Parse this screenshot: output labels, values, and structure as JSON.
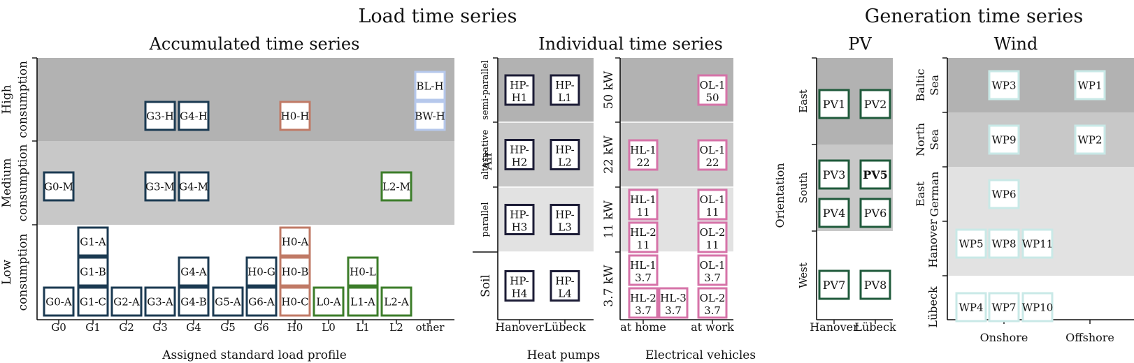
{
  "titles": {
    "load": "Load time series",
    "generation": "Generation time series",
    "accumulated": "Accumulated time series",
    "individual": "Individual time series",
    "pv": "PV",
    "wind": "Wind"
  },
  "colors": {
    "navy": "#1b3a52",
    "terracotta": "#c07a66",
    "green": "#3c7d2a",
    "light_blue": "#b6c8ec",
    "dark_navy": "#1c1c36",
    "pink": "#d673a8",
    "dark_green": "#1f5a3b",
    "pale_teal": "#c9e9e7",
    "band_dark": "#b2b2b2",
    "band_mid": "#c8c8c8",
    "band_light": "#e2e2e2"
  },
  "accumulated": {
    "xlabel": "Assigned standard load profile",
    "x_ticks": [
      "G0",
      "G1",
      "G2",
      "G3",
      "G4",
      "G5",
      "G6",
      "H0",
      "L0",
      "L1",
      "L2",
      "other"
    ],
    "rows": [
      {
        "label_1": "High",
        "label_2": "consumption"
      },
      {
        "label_1": "Medium",
        "label_2": "consumption"
      },
      {
        "label_1": "Low",
        "label_2": "consumption"
      }
    ],
    "boxes": [
      {
        "label": "G3-H",
        "col": 3,
        "row": 0,
        "slot": 0,
        "color": "navy"
      },
      {
        "label": "G4-H",
        "col": 4,
        "row": 0,
        "slot": 0,
        "color": "navy"
      },
      {
        "label": "H0-H",
        "col": 7,
        "row": 0,
        "slot": 0,
        "color": "terracotta"
      },
      {
        "label": "BW-H",
        "col": 11,
        "row": 0,
        "slot": 0,
        "color": "light_blue"
      },
      {
        "label": "BL-H",
        "col": 11,
        "row": 0,
        "slot": 1,
        "color": "light_blue"
      },
      {
        "label": "G0-M",
        "col": 0,
        "row": 1,
        "slot": 0,
        "color": "navy"
      },
      {
        "label": "G3-M",
        "col": 3,
        "row": 1,
        "slot": 0,
        "color": "navy"
      },
      {
        "label": "G4-M",
        "col": 4,
        "row": 1,
        "slot": 0,
        "color": "navy"
      },
      {
        "label": "L2-M",
        "col": 10,
        "row": 1,
        "slot": 0,
        "color": "green"
      },
      {
        "label": "G0-A",
        "col": 0,
        "row": 2,
        "slot": 0,
        "color": "navy"
      },
      {
        "label": "G1-C",
        "col": 1,
        "row": 2,
        "slot": 0,
        "color": "navy"
      },
      {
        "label": "G1-B",
        "col": 1,
        "row": 2,
        "slot": 1,
        "color": "navy"
      },
      {
        "label": "G1-A",
        "col": 1,
        "row": 2,
        "slot": 2,
        "color": "navy"
      },
      {
        "label": "G2-A",
        "col": 2,
        "row": 2,
        "slot": 0,
        "color": "navy"
      },
      {
        "label": "G3-A",
        "col": 3,
        "row": 2,
        "slot": 0,
        "color": "navy"
      },
      {
        "label": "G4-B",
        "col": 4,
        "row": 2,
        "slot": 0,
        "color": "navy"
      },
      {
        "label": "G4-A",
        "col": 4,
        "row": 2,
        "slot": 1,
        "color": "navy"
      },
      {
        "label": "G5-A",
        "col": 5,
        "row": 2,
        "slot": 0,
        "color": "navy"
      },
      {
        "label": "G6-A",
        "col": 6,
        "row": 2,
        "slot": 0,
        "color": "navy"
      },
      {
        "label": "H0-G",
        "col": 6,
        "row": 2,
        "slot": 1,
        "color": "navy"
      },
      {
        "label": "H0-C",
        "col": 7,
        "row": 2,
        "slot": 0,
        "color": "terracotta"
      },
      {
        "label": "H0-B",
        "col": 7,
        "row": 2,
        "slot": 1,
        "color": "terracotta"
      },
      {
        "label": "H0-A",
        "col": 7,
        "row": 2,
        "slot": 2,
        "color": "terracotta"
      },
      {
        "label": "L0-A",
        "col": 8,
        "row": 2,
        "slot": 0,
        "color": "green"
      },
      {
        "label": "L1-A",
        "col": 9,
        "row": 2,
        "slot": 0,
        "color": "green"
      },
      {
        "label": "H0-L",
        "col": 9,
        "row": 2,
        "slot": 1,
        "color": "green"
      },
      {
        "label": "L2-A",
        "col": 10,
        "row": 2,
        "slot": 0,
        "color": "green"
      }
    ]
  },
  "heat_pumps": {
    "xlabel": "Heat pumps",
    "x_ticks": [
      "Hanover",
      "Lübeck"
    ],
    "group_air": "Air",
    "rows": [
      "semi-parallel",
      "alternative",
      "parallel",
      "Soil"
    ],
    "boxes": [
      {
        "l1": "HP-",
        "l2": "H1",
        "col": 0,
        "row": 0
      },
      {
        "l1": "HP-",
        "l2": "L1",
        "col": 1,
        "row": 0
      },
      {
        "l1": "HP-",
        "l2": "H2",
        "col": 0,
        "row": 1
      },
      {
        "l1": "HP-",
        "l2": "L2",
        "col": 1,
        "row": 1
      },
      {
        "l1": "HP-",
        "l2": "H3",
        "col": 0,
        "row": 2
      },
      {
        "l1": "HP-",
        "l2": "L3",
        "col": 1,
        "row": 2
      },
      {
        "l1": "HP-",
        "l2": "H4",
        "col": 0,
        "row": 3
      },
      {
        "l1": "HP-",
        "l2": "L4",
        "col": 1,
        "row": 3
      }
    ]
  },
  "ev": {
    "xlabel": "Electrical vehicles",
    "x_ticks": [
      "at home",
      "at work"
    ],
    "rows": [
      "50 kW",
      "22 kW",
      "11 kW",
      "3.7 kW"
    ],
    "boxes": [
      {
        "l1": "OL-1",
        "l2": "50",
        "pos": "work",
        "row": 0,
        "slot": 0
      },
      {
        "l1": "HL-1",
        "l2": "22",
        "pos": "home",
        "row": 1,
        "slot": 0
      },
      {
        "l1": "OL-1",
        "l2": "22",
        "pos": "work",
        "row": 1,
        "slot": 0
      },
      {
        "l1": "HL-1",
        "l2": "11",
        "pos": "home",
        "row": 2,
        "slot": 1
      },
      {
        "l1": "HL-2",
        "l2": "11",
        "pos": "home",
        "row": 2,
        "slot": 0
      },
      {
        "l1": "OL-1",
        "l2": "11",
        "pos": "work",
        "row": 2,
        "slot": 1
      },
      {
        "l1": "OL-2",
        "l2": "11",
        "pos": "work",
        "row": 2,
        "slot": 0
      },
      {
        "l1": "HL-1",
        "l2": "3.7",
        "pos": "home",
        "row": 3,
        "slot": 1
      },
      {
        "l1": "HL-2",
        "l2": "3.7",
        "pos": "home",
        "row": 3,
        "slot": 0
      },
      {
        "l1": "HL-3",
        "l2": "3.7",
        "pos": "home2",
        "row": 3,
        "slot": 0
      },
      {
        "l1": "OL-1",
        "l2": "3.7",
        "pos": "work",
        "row": 3,
        "slot": 1
      },
      {
        "l1": "OL-2",
        "l2": "3.7",
        "pos": "work",
        "row": 3,
        "slot": 0
      }
    ]
  },
  "pv": {
    "ylabel": "Orientation",
    "x_ticks": [
      "Hanover",
      "Lübeck"
    ],
    "rows": [
      "East",
      "South",
      "West"
    ],
    "boxes": [
      {
        "label": "PV1",
        "col": 0,
        "row": 0,
        "slot": 0,
        "bold": false
      },
      {
        "label": "PV2",
        "col": 1,
        "row": 0,
        "slot": 0,
        "bold": false
      },
      {
        "label": "PV4",
        "col": 0,
        "row": 1,
        "slot": 0,
        "bold": false
      },
      {
        "label": "PV3",
        "col": 0,
        "row": 1,
        "slot": 1,
        "bold": false
      },
      {
        "label": "PV6",
        "col": 1,
        "row": 1,
        "slot": 0,
        "bold": false
      },
      {
        "label": "PV5",
        "col": 1,
        "row": 1,
        "slot": 1,
        "bold": true
      },
      {
        "label": "PV7",
        "col": 0,
        "row": 2,
        "slot": 0,
        "bold": false
      },
      {
        "label": "PV8",
        "col": 1,
        "row": 2,
        "slot": 0,
        "bold": false
      }
    ]
  },
  "wind": {
    "x_ticks": [
      "Onshore",
      "Offshore"
    ],
    "rows": [
      {
        "l1": "Baltic",
        "l2": "Sea"
      },
      {
        "l1": "North",
        "l2": "Sea"
      },
      {
        "l1": "East",
        "l2": "German"
      },
      {
        "l1": "Hanover",
        "l2": ""
      },
      {
        "l1": "Lübeck",
        "l2": ""
      }
    ],
    "boxes": [
      {
        "label": "WP3",
        "col": 1,
        "row": 0
      },
      {
        "label": "WP1",
        "col": 3,
        "row": 0
      },
      {
        "label": "WP9",
        "col": 1,
        "row": 1
      },
      {
        "label": "WP2",
        "col": 3,
        "row": 1
      },
      {
        "label": "WP6",
        "col": 1,
        "row": 2
      },
      {
        "label": "WP5",
        "col": 0,
        "row": 3
      },
      {
        "label": "WP8",
        "col": 1,
        "row": 3
      },
      {
        "label": "WP11",
        "col": 2,
        "row": 3
      },
      {
        "label": "WP4",
        "col": 0,
        "row": 4
      },
      {
        "label": "WP7",
        "col": 1,
        "row": 4
      },
      {
        "label": "WP10",
        "col": 2,
        "row": 4
      }
    ]
  }
}
